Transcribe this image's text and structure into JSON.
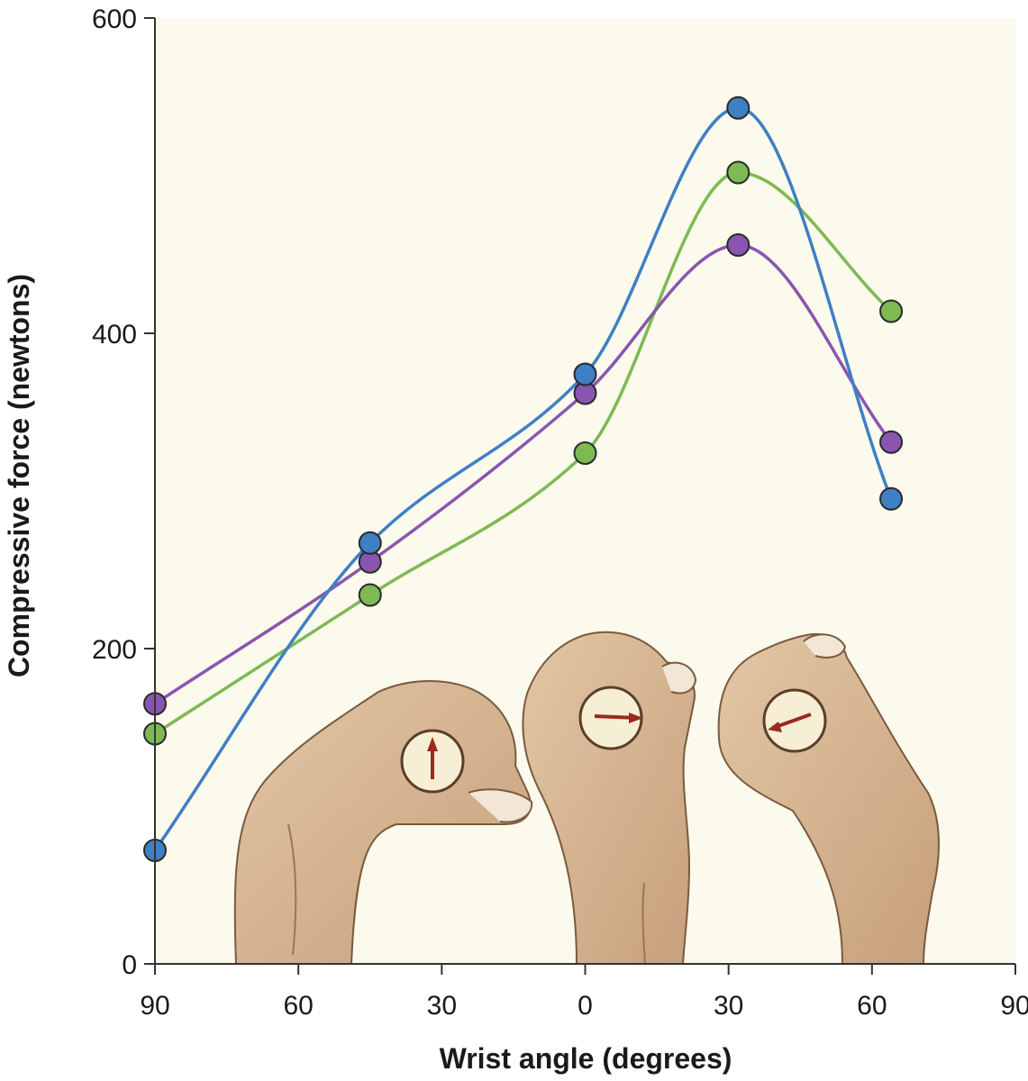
{
  "chart_data": {
    "type": "line",
    "xlabel": "Wrist angle (degrees)",
    "ylabel": "Compressive force (newtons)",
    "x_tick_labels": [
      "90",
      "60",
      "30",
      "0",
      "30",
      "60",
      "90"
    ],
    "x_tick_values": [
      -90,
      -60,
      -30,
      0,
      30,
      60,
      90
    ],
    "y_tick_labels": [
      "0",
      "200",
      "400",
      "600"
    ],
    "y_tick_values": [
      0,
      200,
      400,
      600
    ],
    "xlim": [
      -90,
      90
    ],
    "ylim": [
      0,
      600
    ],
    "grid": false,
    "x": [
      -90,
      -45,
      0,
      32,
      64
    ],
    "series": [
      {
        "color": "#3f7fc4",
        "values": [
          72,
          267,
          374,
          543,
          295
        ]
      },
      {
        "color": "#8a55b0",
        "values": [
          165,
          255,
          362,
          456,
          331
        ]
      },
      {
        "color": "#7dba54",
        "values": [
          146,
          234,
          324,
          502,
          414
        ]
      }
    ],
    "plot_background": "#fbfaec",
    "illustration": "three hands gripping dynamometer dials at different wrist angles"
  }
}
